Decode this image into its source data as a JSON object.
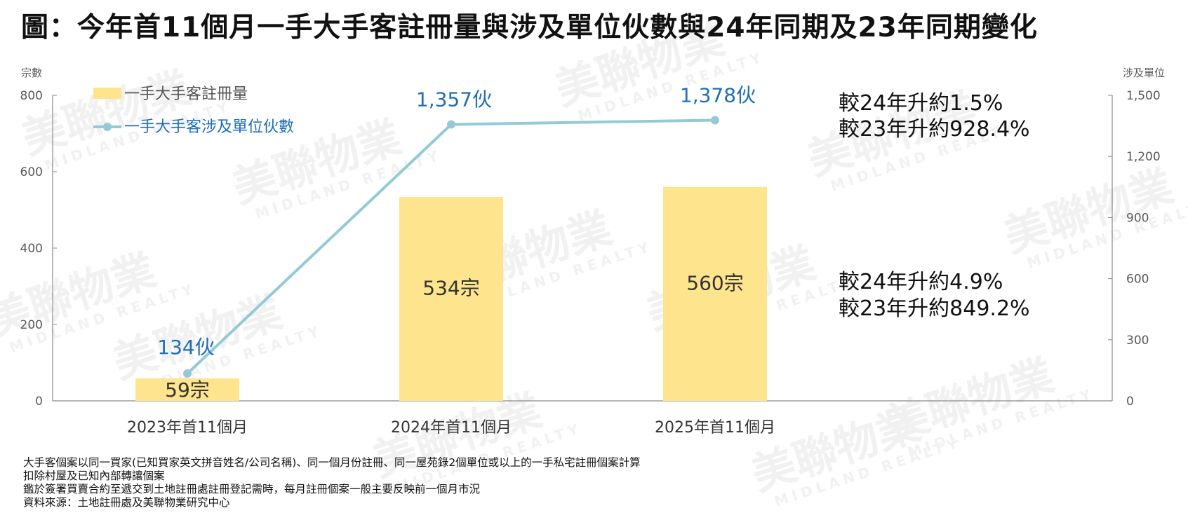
{
  "title": "圖：今年首11個月一手大手客註冊量與涉及單位伙數與24年同期及23年同期變化",
  "watermark": {
    "brand": "美聯物業",
    "sub": "MIDLAND REALTY"
  },
  "chart_data": {
    "type": "bar",
    "categories": [
      "2023年首11個月",
      "2024年首11個月",
      "2025年首11個月"
    ],
    "y_left_label": "宗數",
    "y_right_label": "涉及單位",
    "y_left_range": [
      0,
      800
    ],
    "y_left_ticks": [
      "0",
      "200",
      "400",
      "600",
      "800"
    ],
    "y_right_range": [
      0,
      1500
    ],
    "y_right_ticks": [
      "0",
      "300",
      "600",
      "900",
      "1,200",
      "1,500"
    ],
    "grid": false,
    "legend_position": "top-left",
    "series": [
      {
        "name": "一手大手客註冊量",
        "type": "bar",
        "color": "#fde48d",
        "axis": "left",
        "values": [
          59,
          534,
          560
        ],
        "labels": [
          "59宗",
          "534宗",
          "560宗"
        ]
      },
      {
        "name": "一手大手客涉及單位伙數",
        "type": "line",
        "color": "#93cad6",
        "axis": "right",
        "values": [
          134,
          1357,
          1378
        ],
        "labels": [
          "134伙",
          "1,357伙",
          "1,378伙"
        ]
      }
    ],
    "annotations": [
      {
        "lines": [
          "較24年升約1.5%",
          "較23年升約928.4%"
        ],
        "refers_to": "涉及單位伙數"
      },
      {
        "lines": [
          "較24年升約4.9%",
          "較23年升約849.2%"
        ],
        "refers_to": "註冊量"
      }
    ]
  },
  "notes": [
    "大手客個案以同一買家(已知買家英文拼音姓名/公司名稱)、同一個月份註冊、同一屋苑錄2個單位或以上的一手私宅註冊個案計算",
    "扣除村屋及已知內部轉讓個案",
    "鑑於簽署買賣合約至遞交到土地註冊處註冊登記需時，每月註冊個案一般主要反映前一個月市況",
    "資料來源：土地註冊處及美聯物業研究中心"
  ]
}
